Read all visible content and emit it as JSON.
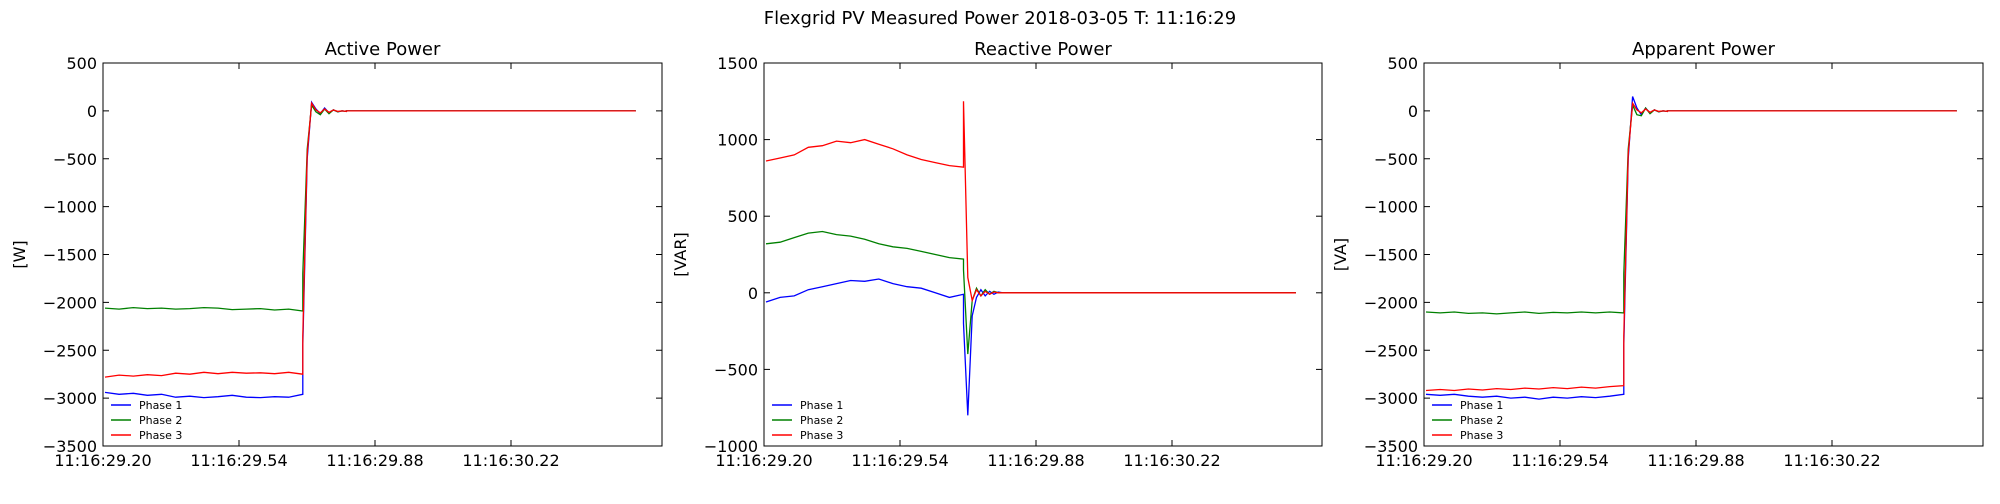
{
  "figure": {
    "suptitle": "Flexgrid PV Measured Power 2018-03-05 T: 11:16:29"
  },
  "colors": {
    "phase1": "#0000ff",
    "phase2": "#008000",
    "phase3": "#ff0000"
  },
  "chart_data": [
    {
      "type": "line",
      "title": "Active Power",
      "xlabel": "",
      "ylabel": "[W]",
      "xlim": [
        11.1629195,
        11.1630508
      ],
      "ylim": [
        -3500,
        500
      ],
      "xticks": [
        {
          "value": 11.16292,
          "label": "11:16:29.20"
        },
        {
          "value": 11.1629254,
          "label": "11:16:29.54"
        },
        {
          "value": 11.1629888,
          "label": "11:16:29.88"
        },
        {
          "value": 11.1630022,
          "label": "11:16:30.22"
        }
      ],
      "yticks": [
        500,
        0,
        -500,
        -1000,
        -1500,
        -2000,
        -2500,
        -3000,
        -3500
      ],
      "legend_location": "lower-left",
      "grid": false,
      "series": [
        {
          "name": "Phase 1",
          "color": "#0000ff",
          "values": [
            -2940,
            -2960,
            -2950,
            -2970,
            -2960,
            -2990,
            -2980,
            -2995,
            -2985,
            -2970,
            -2990,
            -2995,
            -2985,
            -2990,
            -2960,
            -2450,
            -500,
            90,
            20,
            -30,
            30,
            -20,
            10,
            -10,
            0,
            -5,
            0,
            0,
            0,
            0,
            0,
            0,
            0,
            0,
            0,
            0,
            0,
            0,
            0,
            0,
            0,
            0,
            0,
            0
          ]
        },
        {
          "name": "Phase 2",
          "color": "#008000",
          "values": [
            -2060,
            -2070,
            -2055,
            -2065,
            -2060,
            -2070,
            -2065,
            -2055,
            -2060,
            -2075,
            -2070,
            -2065,
            -2080,
            -2070,
            -2090,
            -1700,
            -400,
            60,
            -10,
            -40,
            20,
            -30,
            10,
            -10,
            0,
            -5,
            0,
            0,
            0,
            0,
            0,
            0,
            0,
            0,
            0,
            0,
            0,
            0,
            0,
            0,
            0,
            0,
            0,
            0
          ]
        },
        {
          "name": "Phase 3",
          "color": "#ff0000",
          "values": [
            -2780,
            -2760,
            -2770,
            -2755,
            -2765,
            -2740,
            -2750,
            -2730,
            -2745,
            -2730,
            -2740,
            -2735,
            -2745,
            -2730,
            -2750,
            -2350,
            -450,
            80,
            10,
            -20,
            20,
            -15,
            10,
            -5,
            0,
            -5,
            0,
            0,
            0,
            0,
            0,
            0,
            0,
            0,
            0,
            0,
            0,
            0,
            0,
            0,
            0,
            0,
            0,
            0
          ]
        }
      ]
    },
    {
      "type": "line",
      "title": "Reactive Power",
      "xlabel": "",
      "ylabel": "[VAR]",
      "xlim": [
        11.1629195,
        11.1630508
      ],
      "ylim": [
        -1000,
        1500
      ],
      "xticks": [
        {
          "value": 11.16292,
          "label": "11:16:29.20"
        },
        {
          "value": 11.1629254,
          "label": "11:16:29.54"
        },
        {
          "value": 11.1629888,
          "label": "11:16:29.88"
        },
        {
          "value": 11.1630022,
          "label": "11:16:30.22"
        }
      ],
      "yticks": [
        1500,
        1000,
        500,
        0,
        -500,
        -1000
      ],
      "legend_location": "lower-left",
      "grid": false,
      "series": [
        {
          "name": "Phase 1",
          "color": "#0000ff",
          "values": [
            -60,
            -30,
            -20,
            20,
            40,
            60,
            80,
            75,
            90,
            60,
            40,
            30,
            0,
            -30,
            -10,
            -200,
            -800,
            -150,
            -30,
            20,
            -20,
            10,
            -10,
            5,
            0,
            0,
            0,
            0,
            0,
            0,
            0,
            0,
            0,
            0,
            0,
            0,
            0,
            0,
            0,
            0,
            0,
            0,
            0,
            0
          ]
        },
        {
          "name": "Phase 2",
          "color": "#008000",
          "values": [
            320,
            330,
            360,
            390,
            400,
            380,
            370,
            350,
            320,
            300,
            290,
            270,
            250,
            230,
            220,
            150,
            -400,
            -50,
            30,
            -20,
            20,
            -10,
            10,
            0,
            0,
            0,
            0,
            0,
            0,
            0,
            0,
            0,
            0,
            0,
            0,
            0,
            0,
            0,
            0,
            0,
            0,
            0,
            0,
            0
          ]
        },
        {
          "name": "Phase 3",
          "color": "#ff0000",
          "values": [
            860,
            880,
            900,
            950,
            960,
            990,
            980,
            1000,
            970,
            940,
            900,
            870,
            850,
            830,
            820,
            1250,
            100,
            -50,
            20,
            -20,
            10,
            -10,
            5,
            0,
            0,
            0,
            0,
            0,
            0,
            0,
            0,
            0,
            0,
            0,
            0,
            0,
            0,
            0,
            0,
            0,
            0,
            0,
            0,
            0
          ]
        }
      ]
    },
    {
      "type": "line",
      "title": "Apparent Power",
      "xlabel": "",
      "ylabel": "[VA]",
      "xlim": [
        11.1629195,
        11.1630508
      ],
      "ylim": [
        -3500,
        500
      ],
      "xticks": [
        {
          "value": 11.16292,
          "label": "11:16:29.20"
        },
        {
          "value": 11.1629254,
          "label": "11:16:29.54"
        },
        {
          "value": 11.1629888,
          "label": "11:16:29.88"
        },
        {
          "value": 11.1630022,
          "label": "11:16:30.22"
        }
      ],
      "yticks": [
        500,
        0,
        -500,
        -1000,
        -1500,
        -2000,
        -2500,
        -3000,
        -3500
      ],
      "legend_location": "lower-left",
      "grid": false,
      "series": [
        {
          "name": "Phase 1",
          "color": "#0000ff",
          "values": [
            -2960,
            -2970,
            -2960,
            -2980,
            -2990,
            -2980,
            -3000,
            -2990,
            -3010,
            -2990,
            -3000,
            -2985,
            -2995,
            -2980,
            -2960,
            -2450,
            -500,
            150,
            30,
            -40,
            30,
            -20,
            10,
            -10,
            0,
            -5,
            0,
            0,
            0,
            0,
            0,
            0,
            0,
            0,
            0,
            0,
            0,
            0,
            0,
            0,
            0,
            0,
            0,
            0
          ]
        },
        {
          "name": "Phase 2",
          "color": "#008000",
          "values": [
            -2100,
            -2110,
            -2100,
            -2115,
            -2110,
            -2120,
            -2110,
            -2100,
            -2115,
            -2105,
            -2110,
            -2100,
            -2110,
            -2100,
            -2110,
            -1700,
            -400,
            60,
            -40,
            -50,
            30,
            -30,
            10,
            -10,
            0,
            -5,
            0,
            0,
            0,
            0,
            0,
            0,
            0,
            0,
            0,
            0,
            0,
            0,
            0,
            0,
            0,
            0,
            0,
            0
          ]
        },
        {
          "name": "Phase 3",
          "color": "#ff0000",
          "values": [
            -2920,
            -2910,
            -2920,
            -2905,
            -2915,
            -2900,
            -2910,
            -2895,
            -2905,
            -2890,
            -2900,
            -2885,
            -2895,
            -2880,
            -2870,
            -2350,
            -450,
            80,
            10,
            -20,
            20,
            -15,
            10,
            -5,
            0,
            -5,
            0,
            0,
            0,
            0,
            0,
            0,
            0,
            0,
            0,
            0,
            0,
            0,
            0,
            0,
            0,
            0,
            0,
            0
          ]
        }
      ]
    }
  ]
}
